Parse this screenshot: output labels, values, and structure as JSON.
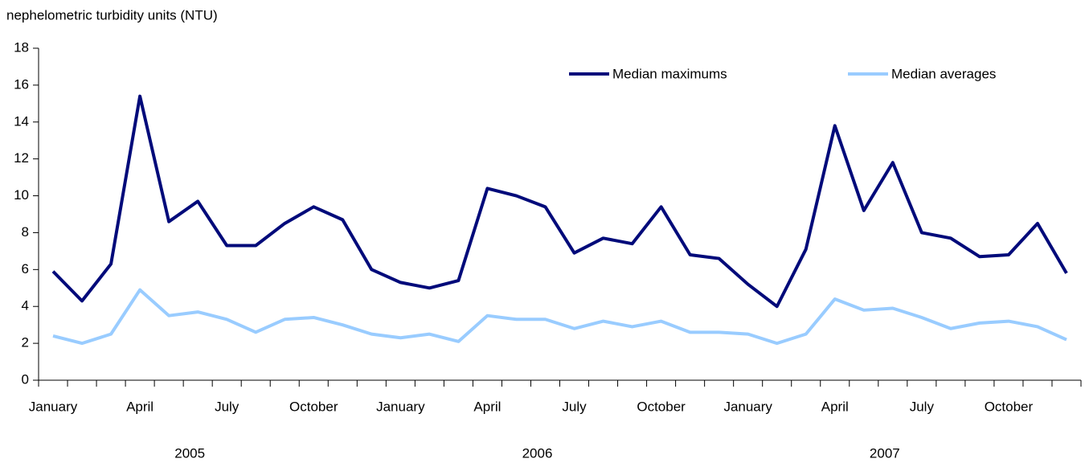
{
  "chart_data": {
    "type": "line",
    "y_axis_label": "nephelometric turbidity units (NTU)",
    "categories": [
      "January",
      null,
      null,
      "April",
      null,
      null,
      "July",
      null,
      null,
      "October",
      null,
      null,
      "January",
      null,
      null,
      "April",
      null,
      null,
      "July",
      null,
      null,
      "October",
      null,
      null,
      "January",
      null,
      null,
      "April",
      null,
      null,
      "July",
      null,
      null,
      "October",
      null,
      null
    ],
    "year_groups": [
      "2005",
      "2006",
      "2007"
    ],
    "series": [
      {
        "name": "Median maximums",
        "color": "#000a7a",
        "values": [
          5.9,
          4.3,
          6.3,
          15.4,
          8.6,
          9.7,
          7.3,
          7.3,
          8.5,
          9.4,
          8.7,
          6.0,
          5.3,
          5.0,
          5.4,
          10.4,
          10.0,
          9.4,
          6.9,
          7.7,
          7.4,
          9.4,
          6.8,
          6.6,
          5.2,
          4.0,
          7.1,
          13.8,
          9.2,
          11.8,
          8.0,
          7.7,
          6.7,
          6.8,
          8.5,
          5.8
        ]
      },
      {
        "name": "Median averages",
        "color": "#99ccff",
        "values": [
          2.4,
          2.0,
          2.5,
          4.9,
          3.5,
          3.7,
          3.3,
          2.6,
          3.3,
          3.4,
          3.0,
          2.5,
          2.3,
          2.5,
          2.1,
          3.5,
          3.3,
          3.3,
          2.8,
          3.2,
          2.9,
          3.2,
          2.6,
          2.6,
          2.5,
          2.0,
          2.5,
          4.4,
          3.8,
          3.9,
          3.4,
          2.8,
          3.1,
          3.2,
          2.9,
          2.2
        ]
      }
    ],
    "ylim": [
      0,
      18
    ],
    "yticks": [
      0,
      2,
      4,
      6,
      8,
      10,
      12,
      14,
      16,
      18
    ],
    "grid": false
  }
}
